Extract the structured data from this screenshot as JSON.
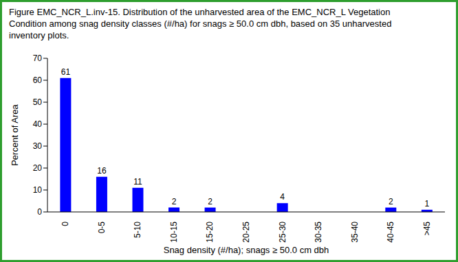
{
  "chart_data": {
    "type": "bar",
    "title": "Figure EMC_NCR_L.inv-15. Distribution of the unharvested area of the EMC_NCR_L Vegetation Condition among snag density classes (#/ha) for snags ≥ 50.0 cm dbh, based on 35 unharvested inventory plots.",
    "x_label": "Snag density (#/ha); snags ≥ 50.0 cm dbh",
    "y_label": "Percent of Area",
    "categories": [
      "0",
      "0-5",
      "5-10",
      "10-15",
      "15-20",
      "20-25",
      "25-30",
      "30-35",
      "35-40",
      "40-45",
      ">45"
    ],
    "values": [
      61,
      16,
      11,
      2,
      2,
      0,
      4,
      0,
      0,
      2,
      1
    ],
    "color": "#0000ff",
    "ylim": [
      0,
      70
    ],
    "yticks": [
      0,
      10,
      20,
      30,
      40,
      50,
      60,
      70
    ],
    "grid": false,
    "data_labels": true
  }
}
